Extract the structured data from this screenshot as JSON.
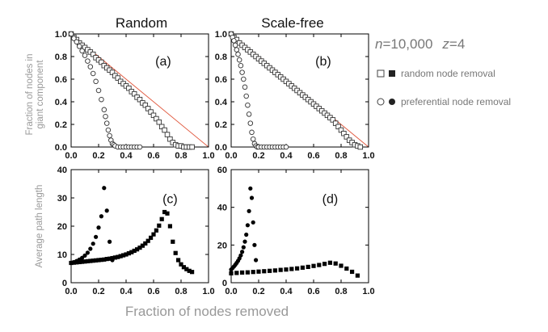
{
  "figure": {
    "col_titles": [
      "Random",
      "Scale-free"
    ],
    "ylabel_top": [
      "Fraction of nodes in",
      "giant component"
    ],
    "ylabel_bottom": "Average path length",
    "xlabel": "Fraction of nodes removed",
    "params": {
      "n_label": "n",
      "n_value": "=10,000",
      "z_label": "z",
      "z_value": "=4"
    },
    "legend": [
      {
        "text": "random node removal"
      },
      {
        "text": "preferential node removal"
      }
    ]
  },
  "chart_data": [
    {
      "type": "scatter",
      "panel": "(a)",
      "xlim": [
        0,
        1
      ],
      "ylim": [
        0,
        1
      ],
      "xticks": [
        "0.0",
        "0.2",
        "0.4",
        "0.6",
        "0.8",
        "1.0"
      ],
      "yticks": [
        "0.0",
        "0.2",
        "0.4",
        "0.6",
        "0.8",
        "1.0"
      ],
      "reference_line": [
        [
          0,
          1
        ],
        [
          1,
          0
        ]
      ],
      "series": [
        {
          "marker": "open-square",
          "x": [
            0.0,
            0.02,
            0.04,
            0.06,
            0.08,
            0.1,
            0.12,
            0.14,
            0.16,
            0.18,
            0.2,
            0.22,
            0.24,
            0.26,
            0.28,
            0.3,
            0.32,
            0.34,
            0.36,
            0.38,
            0.4,
            0.42,
            0.44,
            0.46,
            0.48,
            0.5,
            0.52,
            0.54,
            0.56,
            0.58,
            0.6,
            0.62,
            0.64,
            0.66,
            0.68,
            0.7,
            0.72,
            0.74,
            0.76,
            0.78,
            0.8,
            0.82,
            0.84,
            0.86,
            0.88
          ],
          "y": [
            1.0,
            0.97,
            0.95,
            0.92,
            0.9,
            0.88,
            0.86,
            0.84,
            0.82,
            0.79,
            0.77,
            0.75,
            0.72,
            0.7,
            0.68,
            0.66,
            0.63,
            0.61,
            0.58,
            0.56,
            0.54,
            0.52,
            0.49,
            0.47,
            0.44,
            0.42,
            0.39,
            0.37,
            0.34,
            0.31,
            0.28,
            0.25,
            0.22,
            0.18,
            0.15,
            0.11,
            0.07,
            0.04,
            0.02,
            0.01,
            0.01,
            0.0,
            0.0,
            0.0,
            0.0
          ]
        },
        {
          "marker": "open-circle",
          "x": [
            0.0,
            0.02,
            0.04,
            0.06,
            0.08,
            0.1,
            0.12,
            0.14,
            0.16,
            0.18,
            0.2,
            0.22,
            0.24,
            0.25,
            0.26,
            0.27,
            0.28,
            0.29,
            0.3,
            0.31,
            0.32,
            0.34,
            0.36,
            0.38,
            0.4,
            0.42,
            0.44,
            0.46,
            0.48,
            0.5
          ],
          "y": [
            1.0,
            0.96,
            0.93,
            0.89,
            0.85,
            0.81,
            0.76,
            0.71,
            0.65,
            0.58,
            0.5,
            0.42,
            0.33,
            0.27,
            0.21,
            0.15,
            0.1,
            0.06,
            0.03,
            0.02,
            0.01,
            0.0,
            0.0,
            0.0,
            0.0,
            0.0,
            0.0,
            0.0,
            0.0,
            0.0
          ]
        }
      ]
    },
    {
      "type": "scatter",
      "panel": "(b)",
      "xlim": [
        0,
        1
      ],
      "ylim": [
        0,
        1
      ],
      "xticks": [
        "0.0",
        "0.2",
        "0.4",
        "0.6",
        "0.8",
        "1.0"
      ],
      "yticks": [
        "0.0",
        "0.2",
        "0.4",
        "0.6",
        "0.8",
        "1.0"
      ],
      "reference_line": [
        [
          0,
          1
        ],
        [
          1,
          0
        ]
      ],
      "series": [
        {
          "marker": "open-square",
          "x": [
            0.0,
            0.02,
            0.04,
            0.06,
            0.08,
            0.1,
            0.12,
            0.14,
            0.16,
            0.18,
            0.2,
            0.22,
            0.24,
            0.26,
            0.28,
            0.3,
            0.32,
            0.34,
            0.36,
            0.38,
            0.4,
            0.42,
            0.44,
            0.46,
            0.48,
            0.5,
            0.52,
            0.54,
            0.56,
            0.58,
            0.6,
            0.62,
            0.64,
            0.66,
            0.68,
            0.7,
            0.72,
            0.74,
            0.76,
            0.78,
            0.8,
            0.82,
            0.84,
            0.86,
            0.88,
            0.9,
            0.92,
            0.94
          ],
          "y": [
            1.0,
            0.97,
            0.95,
            0.92,
            0.9,
            0.88,
            0.86,
            0.84,
            0.82,
            0.8,
            0.78,
            0.76,
            0.74,
            0.72,
            0.7,
            0.68,
            0.66,
            0.64,
            0.62,
            0.6,
            0.58,
            0.56,
            0.54,
            0.52,
            0.5,
            0.48,
            0.46,
            0.44,
            0.42,
            0.4,
            0.38,
            0.36,
            0.34,
            0.32,
            0.3,
            0.28,
            0.26,
            0.24,
            0.21,
            0.18,
            0.15,
            0.12,
            0.09,
            0.06,
            0.04,
            0.02,
            0.01,
            0.0
          ]
        },
        {
          "marker": "open-circle",
          "x": [
            0.0,
            0.01,
            0.02,
            0.03,
            0.04,
            0.05,
            0.06,
            0.07,
            0.08,
            0.09,
            0.1,
            0.11,
            0.12,
            0.13,
            0.14,
            0.15,
            0.16,
            0.17,
            0.18,
            0.19,
            0.2,
            0.22,
            0.24,
            0.26,
            0.28,
            0.3,
            0.32,
            0.34,
            0.36,
            0.38,
            0.4
          ],
          "y": [
            1.0,
            0.97,
            0.94,
            0.9,
            0.86,
            0.82,
            0.77,
            0.72,
            0.66,
            0.6,
            0.53,
            0.45,
            0.37,
            0.29,
            0.21,
            0.13,
            0.07,
            0.03,
            0.01,
            0.0,
            0.0,
            0.0,
            0.0,
            0.0,
            0.0,
            0.0,
            0.0,
            0.0,
            0.0,
            0.0,
            0.0
          ]
        }
      ]
    },
    {
      "type": "scatter",
      "panel": "(c)",
      "xlim": [
        0,
        1
      ],
      "ylim": [
        0,
        40
      ],
      "xticks": [
        "0.0",
        "0.2",
        "0.4",
        "0.6",
        "0.8",
        "1.0"
      ],
      "yticks": [
        "0",
        "10",
        "20",
        "30",
        "40"
      ],
      "series": [
        {
          "marker": "filled-square",
          "x": [
            0.0,
            0.02,
            0.04,
            0.06,
            0.08,
            0.1,
            0.12,
            0.14,
            0.16,
            0.18,
            0.2,
            0.22,
            0.24,
            0.26,
            0.28,
            0.3,
            0.32,
            0.34,
            0.36,
            0.38,
            0.4,
            0.42,
            0.44,
            0.46,
            0.48,
            0.5,
            0.52,
            0.54,
            0.56,
            0.58,
            0.6,
            0.62,
            0.64,
            0.66,
            0.68,
            0.7,
            0.72,
            0.74,
            0.76,
            0.78,
            0.8,
            0.82,
            0.84,
            0.86,
            0.88
          ],
          "y": [
            7.0,
            7.1,
            7.2,
            7.3,
            7.4,
            7.5,
            7.6,
            7.7,
            7.8,
            7.9,
            8.0,
            8.1,
            8.2,
            8.4,
            8.5,
            8.7,
            8.9,
            9.1,
            9.4,
            9.7,
            10.0,
            10.4,
            10.8,
            11.3,
            11.8,
            12.4,
            13.1,
            13.9,
            14.8,
            15.9,
            17.1,
            18.5,
            20.2,
            22.5,
            25.0,
            24.5,
            20.0,
            14.5,
            10.5,
            8.0,
            6.5,
            5.5,
            4.8,
            4.2,
            3.8
          ]
        },
        {
          "marker": "filled-circle",
          "x": [
            0.0,
            0.02,
            0.04,
            0.06,
            0.08,
            0.1,
            0.12,
            0.14,
            0.16,
            0.18,
            0.2,
            0.22,
            0.24,
            0.26,
            0.28,
            0.3
          ],
          "y": [
            7.0,
            7.3,
            7.7,
            8.2,
            8.8,
            9.6,
            10.6,
            12.0,
            13.8,
            16.2,
            19.5,
            23.5,
            33.5,
            25.5,
            14.5,
            8.0
          ]
        }
      ]
    },
    {
      "type": "scatter",
      "panel": "(d)",
      "xlim": [
        0,
        1
      ],
      "ylim": [
        0,
        60
      ],
      "xticks": [
        "0.0",
        "0.2",
        "0.4",
        "0.6",
        "0.8",
        "1.0"
      ],
      "yticks": [
        "0",
        "20",
        "40",
        "60"
      ],
      "series": [
        {
          "marker": "filled-square",
          "x": [
            0.0,
            0.04,
            0.08,
            0.12,
            0.16,
            0.2,
            0.24,
            0.28,
            0.32,
            0.36,
            0.4,
            0.44,
            0.48,
            0.52,
            0.56,
            0.6,
            0.64,
            0.68,
            0.72,
            0.76,
            0.8,
            0.84,
            0.88,
            0.92
          ],
          "y": [
            5.0,
            5.2,
            5.4,
            5.5,
            5.7,
            5.9,
            6.1,
            6.3,
            6.5,
            6.8,
            7.0,
            7.3,
            7.6,
            8.0,
            8.4,
            8.9,
            9.4,
            10.0,
            10.6,
            10.2,
            9.0,
            7.5,
            5.8,
            3.8
          ]
        },
        {
          "marker": "filled-circle",
          "x": [
            0.0,
            0.01,
            0.02,
            0.03,
            0.04,
            0.05,
            0.06,
            0.07,
            0.08,
            0.09,
            0.1,
            0.11,
            0.12,
            0.13,
            0.14,
            0.15,
            0.16,
            0.17,
            0.18
          ],
          "y": [
            7.0,
            7.8,
            8.6,
            9.5,
            10.5,
            11.6,
            12.9,
            14.5,
            16.4,
            18.8,
            21.8,
            25.5,
            30.5,
            38.0,
            50.0,
            45.0,
            32.0,
            20.0,
            12.0
          ]
        }
      ]
    }
  ]
}
